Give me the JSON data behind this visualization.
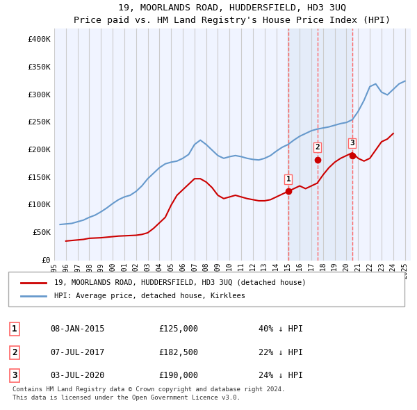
{
  "title": "19, MOORLANDS ROAD, HUDDERSFIELD, HD3 3UQ",
  "subtitle": "Price paid vs. HM Land Registry's House Price Index (HPI)",
  "background_color": "#ffffff",
  "plot_bg_color": "#f0f4ff",
  "grid_color": "#cccccc",
  "hpi_color": "#6699cc",
  "price_color": "#cc0000",
  "sale_marker_color": "#cc0000",
  "vline_color": "#ff6666",
  "shaded_color": "#dce8f5",
  "ylim": [
    0,
    420000
  ],
  "yticks": [
    0,
    50000,
    100000,
    150000,
    200000,
    250000,
    300000,
    350000,
    400000
  ],
  "ytick_labels": [
    "£0",
    "£50K",
    "£100K",
    "£150K",
    "£200K",
    "£250K",
    "£300K",
    "£350K",
    "£400K"
  ],
  "xlim_start": 1995.5,
  "xlim_end": 2025.5,
  "xtick_years": [
    1995,
    1996,
    1997,
    1998,
    1999,
    2000,
    2001,
    2002,
    2003,
    2004,
    2005,
    2006,
    2007,
    2008,
    2009,
    2010,
    2011,
    2012,
    2013,
    2014,
    2015,
    2016,
    2017,
    2018,
    2019,
    2020,
    2021,
    2022,
    2023,
    2024,
    2025
  ],
  "sales": [
    {
      "date_num": 2015.03,
      "price": 125000,
      "label": "1"
    },
    {
      "date_num": 2017.51,
      "price": 182500,
      "label": "2"
    },
    {
      "date_num": 2020.5,
      "price": 190000,
      "label": "3"
    }
  ],
  "sale_annotations": [
    {
      "label": "1",
      "date": "08-JAN-2015",
      "price": "£125,000",
      "pct": "40% ↓ HPI"
    },
    {
      "label": "2",
      "date": "07-JUL-2017",
      "price": "£182,500",
      "pct": "22% ↓ HPI"
    },
    {
      "label": "3",
      "date": "03-JUL-2020",
      "price": "£190,000",
      "pct": "24% ↓ HPI"
    }
  ],
  "legend_line1": "19, MOORLANDS ROAD, HUDDERSFIELD, HD3 3UQ (detached house)",
  "legend_line2": "HPI: Average price, detached house, Kirklees",
  "footer": "Contains HM Land Registry data © Crown copyright and database right 2024.\nThis data is licensed under the Open Government Licence v3.0.",
  "hpi_data_x": [
    1995.5,
    1996,
    1996.5,
    1997,
    1997.5,
    1998,
    1998.5,
    1999,
    1999.5,
    2000,
    2000.5,
    2001,
    2001.5,
    2002,
    2002.5,
    2003,
    2003.5,
    2004,
    2004.5,
    2005,
    2005.5,
    2006,
    2006.5,
    2007,
    2007.5,
    2008,
    2008.5,
    2009,
    2009.5,
    2010,
    2010.5,
    2011,
    2011.5,
    2012,
    2012.5,
    2013,
    2013.5,
    2014,
    2014.5,
    2015,
    2015.5,
    2016,
    2016.5,
    2017,
    2017.5,
    2018,
    2018.5,
    2019,
    2019.5,
    2020,
    2020.5,
    2021,
    2021.5,
    2022,
    2022.5,
    2023,
    2023.5,
    2024,
    2024.5,
    2025
  ],
  "hpi_data_y": [
    65000,
    66000,
    67000,
    70000,
    73000,
    78000,
    82000,
    88000,
    95000,
    103000,
    110000,
    115000,
    118000,
    125000,
    135000,
    148000,
    158000,
    168000,
    175000,
    178000,
    180000,
    185000,
    192000,
    210000,
    218000,
    210000,
    200000,
    190000,
    185000,
    188000,
    190000,
    188000,
    185000,
    183000,
    182000,
    185000,
    190000,
    198000,
    205000,
    210000,
    218000,
    225000,
    230000,
    235000,
    238000,
    240000,
    242000,
    245000,
    248000,
    250000,
    255000,
    270000,
    290000,
    315000,
    320000,
    305000,
    300000,
    310000,
    320000,
    325000
  ],
  "price_data_x": [
    1996,
    1996.5,
    1997,
    1997.5,
    1998,
    1998.5,
    1999,
    1999.5,
    2000,
    2000.5,
    2001,
    2001.5,
    2002,
    2002.5,
    2003,
    2003.5,
    2004,
    2004.5,
    2005,
    2005.5,
    2006,
    2006.5,
    2007,
    2007.5,
    2008,
    2008.5,
    2009,
    2009.5,
    2010,
    2010.5,
    2011,
    2011.5,
    2012,
    2012.5,
    2013,
    2013.5,
    2014,
    2014.5,
    2015,
    2015.5,
    2016,
    2016.5,
    2017,
    2017.5,
    2018,
    2018.5,
    2019,
    2019.5,
    2020,
    2020.5,
    2021,
    2021.5,
    2022,
    2022.5,
    2023,
    2023.5,
    2024
  ],
  "price_data_y": [
    35000,
    36000,
    37000,
    38000,
    40000,
    40500,
    41000,
    42000,
    43000,
    44000,
    44500,
    45000,
    45500,
    47000,
    50000,
    58000,
    68000,
    78000,
    100000,
    118000,
    128000,
    138000,
    148000,
    148000,
    142000,
    132000,
    118000,
    112000,
    115000,
    118000,
    115000,
    112000,
    110000,
    108000,
    108000,
    110000,
    115000,
    120000,
    125000,
    130000,
    135000,
    130000,
    135000,
    140000,
    155000,
    168000,
    178000,
    185000,
    190000,
    195000,
    185000,
    180000,
    185000,
    200000,
    215000,
    220000,
    230000
  ]
}
